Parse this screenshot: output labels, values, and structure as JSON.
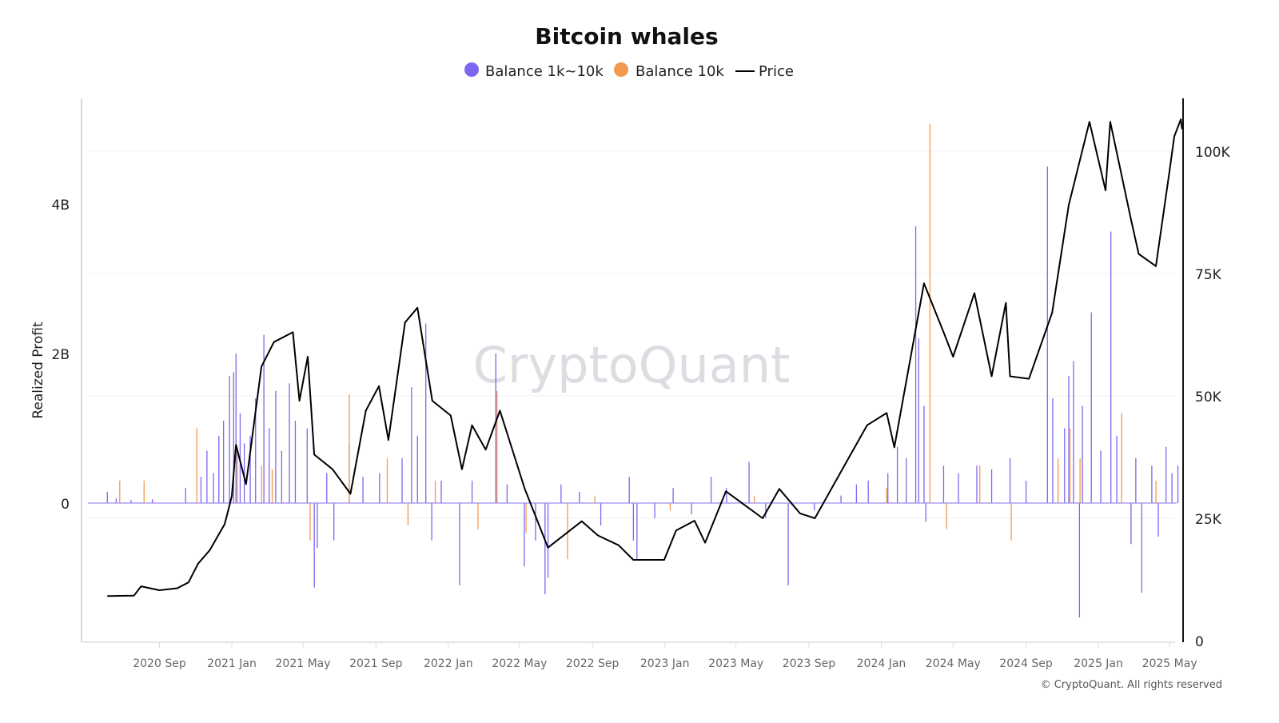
{
  "chart_data": {
    "type": "bar+line",
    "title": "Bitcoin whales",
    "ylabel": "Realized Profit",
    "y2label": "",
    "legend_position": "top-center",
    "grid": true,
    "watermark": "CryptoQuant",
    "copyright": "© CryptoQuant. All rights reserved",
    "colors": {
      "balance_1k_10k": "#7b68ee",
      "balance_10k": "#f29a4e",
      "price": "#000000"
    },
    "legend": [
      {
        "name": "Balance 1k~10k",
        "marker": "circle",
        "color": "#7b68ee"
      },
      {
        "name": "Balance 10k",
        "marker": "circle",
        "color": "#f29a4e"
      },
      {
        "name": "Price",
        "marker": "line",
        "color": "#000000"
      }
    ],
    "x_ticks": [
      "2020 Sep",
      "2021 Jan",
      "2021 May",
      "2021 Sep",
      "2022 Jan",
      "2022 May",
      "2022 Sep",
      "2023 Jan",
      "2023 May",
      "2023 Sep",
      "2024 Jan",
      "2024 May",
      "2024 Sep",
      "2025 Jan",
      "2025 May"
    ],
    "x_tick_dates": [
      "2020-09-01",
      "2021-01-01",
      "2021-05-01",
      "2021-09-01",
      "2022-01-01",
      "2022-05-01",
      "2022-09-01",
      "2023-01-01",
      "2023-05-01",
      "2023-09-01",
      "2024-01-01",
      "2024-05-01",
      "2024-09-01",
      "2025-01-01",
      "2025-05-01"
    ],
    "xlim": [
      "2020-06-01",
      "2025-05-25"
    ],
    "y_left": {
      "ticks": [
        0,
        2,
        4
      ],
      "tick_labels": [
        "0",
        "2B",
        "4B"
      ],
      "unit": "B",
      "range": [
        -1.86,
        5.4
      ]
    },
    "y_right": {
      "ticks": [
        0,
        25000,
        50000,
        75000,
        100000
      ],
      "tick_labels": [
        "0",
        "25K",
        "50K",
        "75K",
        "100K"
      ],
      "range": [
        0,
        111000
      ]
    },
    "series": [
      {
        "name": "Balance 1k~10k",
        "type": "bar",
        "axis": "left",
        "color": "#7b68ee",
        "data": [
          [
            "2020-06-05",
            0.15
          ],
          [
            "2020-06-20",
            0.06
          ],
          [
            "2020-07-15",
            0.04
          ],
          [
            "2020-08-20",
            0.05
          ],
          [
            "2020-10-15",
            0.2
          ],
          [
            "2020-11-10",
            0.35
          ],
          [
            "2020-11-20",
            0.7
          ],
          [
            "2020-12-01",
            0.4
          ],
          [
            "2020-12-10",
            0.9
          ],
          [
            "2020-12-18",
            1.1
          ],
          [
            "2020-12-28",
            1.7
          ],
          [
            "2021-01-04",
            1.75
          ],
          [
            "2021-01-08",
            2.0
          ],
          [
            "2021-01-15",
            1.2
          ],
          [
            "2021-01-22",
            0.8
          ],
          [
            "2021-02-01",
            0.9
          ],
          [
            "2021-02-10",
            1.4
          ],
          [
            "2021-02-24",
            2.25
          ],
          [
            "2021-03-05",
            1.0
          ],
          [
            "2021-03-16",
            1.5
          ],
          [
            "2021-03-26",
            0.7
          ],
          [
            "2021-04-08",
            1.6
          ],
          [
            "2021-04-18",
            1.1
          ],
          [
            "2021-05-08",
            1.0
          ],
          [
            "2021-05-20",
            -1.13
          ],
          [
            "2021-05-25",
            -0.6
          ],
          [
            "2021-06-10",
            0.4
          ],
          [
            "2021-06-22",
            -0.5
          ],
          [
            "2021-07-18",
            0.8
          ],
          [
            "2021-08-10",
            0.35
          ],
          [
            "2021-09-07",
            0.4
          ],
          [
            "2021-10-15",
            0.6
          ],
          [
            "2021-10-31",
            1.55
          ],
          [
            "2021-11-10",
            0.9
          ],
          [
            "2021-11-24",
            2.4
          ],
          [
            "2021-12-04",
            -0.5
          ],
          [
            "2021-12-20",
            0.3
          ],
          [
            "2022-01-20",
            -1.1
          ],
          [
            "2022-02-10",
            0.3
          ],
          [
            "2022-03-22",
            2.0
          ],
          [
            "2022-04-10",
            0.25
          ],
          [
            "2022-05-09",
            -0.85
          ],
          [
            "2022-05-28",
            -0.5
          ],
          [
            "2022-06-13",
            -1.22
          ],
          [
            "2022-06-18",
            -1.0
          ],
          [
            "2022-07-10",
            0.25
          ],
          [
            "2022-08-10",
            0.15
          ],
          [
            "2022-09-15",
            -0.3
          ],
          [
            "2022-11-02",
            0.35
          ],
          [
            "2022-11-09",
            -0.5
          ],
          [
            "2022-11-15",
            -0.76
          ],
          [
            "2022-12-15",
            -0.2
          ],
          [
            "2023-01-15",
            0.2
          ],
          [
            "2023-02-15",
            -0.15
          ],
          [
            "2023-03-20",
            0.35
          ],
          [
            "2023-04-15",
            0.2
          ],
          [
            "2023-05-23",
            0.55
          ],
          [
            "2023-06-20",
            -0.2
          ],
          [
            "2023-07-28",
            -1.1
          ],
          [
            "2023-09-10",
            -0.1
          ],
          [
            "2023-10-25",
            0.1
          ],
          [
            "2023-11-20",
            0.25
          ],
          [
            "2023-12-10",
            0.3
          ],
          [
            "2024-01-12",
            0.4
          ],
          [
            "2024-01-28",
            0.75
          ],
          [
            "2024-02-12",
            0.6
          ],
          [
            "2024-02-28",
            3.7
          ],
          [
            "2024-03-04",
            2.2
          ],
          [
            "2024-03-13",
            1.3
          ],
          [
            "2024-03-16",
            -0.25
          ],
          [
            "2024-04-15",
            0.5
          ],
          [
            "2024-05-10",
            0.4
          ],
          [
            "2024-06-10",
            0.5
          ],
          [
            "2024-07-05",
            0.45
          ],
          [
            "2024-08-05",
            0.6
          ],
          [
            "2024-09-01",
            0.3
          ],
          [
            "2024-10-07",
            4.5
          ],
          [
            "2024-10-16",
            1.4
          ],
          [
            "2024-11-05",
            1.0
          ],
          [
            "2024-11-12",
            1.7
          ],
          [
            "2024-11-20",
            1.9
          ],
          [
            "2024-11-30",
            -1.53
          ],
          [
            "2024-12-05",
            1.3
          ],
          [
            "2024-12-20",
            2.55
          ],
          [
            "2025-01-05",
            0.7
          ],
          [
            "2025-01-22",
            3.63
          ],
          [
            "2025-02-01",
            0.9
          ],
          [
            "2025-02-25",
            -0.55
          ],
          [
            "2025-03-05",
            0.6
          ],
          [
            "2025-03-15",
            -1.2
          ],
          [
            "2025-04-01",
            0.5
          ],
          [
            "2025-04-12",
            -0.45
          ],
          [
            "2025-04-25",
            0.75
          ],
          [
            "2025-05-05",
            0.4
          ],
          [
            "2025-05-15",
            0.5
          ]
        ]
      },
      {
        "name": "Balance 10k",
        "type": "bar",
        "axis": "left",
        "color": "#f29a4e",
        "data": [
          [
            "2020-06-26",
            0.3
          ],
          [
            "2020-08-06",
            0.3
          ],
          [
            "2020-11-03",
            1.0
          ],
          [
            "2021-01-10",
            0.7
          ],
          [
            "2021-02-20",
            0.5
          ],
          [
            "2021-03-10",
            0.45
          ],
          [
            "2021-05-13",
            -0.5
          ],
          [
            "2021-07-18",
            1.45
          ],
          [
            "2021-09-20",
            0.6
          ],
          [
            "2021-10-25",
            -0.3
          ],
          [
            "2021-12-10",
            0.3
          ],
          [
            "2022-02-20",
            -0.35
          ],
          [
            "2022-03-24",
            1.5
          ],
          [
            "2022-05-12",
            -0.4
          ],
          [
            "2022-07-21",
            -0.75
          ],
          [
            "2022-09-05",
            0.1
          ],
          [
            "2023-01-10",
            -0.1
          ],
          [
            "2023-06-01",
            0.1
          ],
          [
            "2024-01-10",
            0.2
          ],
          [
            "2024-03-23",
            5.07
          ],
          [
            "2024-04-20",
            -0.35
          ],
          [
            "2024-06-15",
            0.5
          ],
          [
            "2024-08-07",
            -0.5
          ],
          [
            "2024-10-25",
            0.6
          ],
          [
            "2024-11-14",
            1.0
          ],
          [
            "2024-12-01",
            0.6
          ],
          [
            "2025-02-09",
            1.2
          ],
          [
            "2025-04-08",
            0.3
          ]
        ]
      },
      {
        "name": "Price",
        "type": "line",
        "axis": "right",
        "color": "#000000",
        "data": [
          [
            "2020-06-05",
            9100
          ],
          [
            "2020-07-20",
            9200
          ],
          [
            "2020-08-01",
            11100
          ],
          [
            "2020-09-01",
            10300
          ],
          [
            "2020-10-01",
            10700
          ],
          [
            "2020-10-20",
            11900
          ],
          [
            "2020-11-05",
            15700
          ],
          [
            "2020-11-25",
            18500
          ],
          [
            "2020-12-20",
            23800
          ],
          [
            "2021-01-01",
            29500
          ],
          [
            "2021-01-08",
            40000
          ],
          [
            "2021-01-25",
            32000
          ],
          [
            "2021-02-20",
            56000
          ],
          [
            "2021-03-13",
            61000
          ],
          [
            "2021-04-14",
            63000
          ],
          [
            "2021-04-25",
            49000
          ],
          [
            "2021-05-09",
            58000
          ],
          [
            "2021-05-20",
            38000
          ],
          [
            "2021-06-20",
            35000
          ],
          [
            "2021-07-20",
            30000
          ],
          [
            "2021-08-15",
            47000
          ],
          [
            "2021-09-06",
            52000
          ],
          [
            "2021-09-22",
            41000
          ],
          [
            "2021-10-20",
            65000
          ],
          [
            "2021-11-10",
            68000
          ],
          [
            "2021-12-05",
            49000
          ],
          [
            "2022-01-05",
            46000
          ],
          [
            "2022-01-24",
            35000
          ],
          [
            "2022-02-10",
            44000
          ],
          [
            "2022-03-05",
            39000
          ],
          [
            "2022-03-29",
            47000
          ],
          [
            "2022-05-10",
            31000
          ],
          [
            "2022-06-18",
            19000
          ],
          [
            "2022-08-14",
            24400
          ],
          [
            "2022-09-10",
            21500
          ],
          [
            "2022-10-15",
            19500
          ],
          [
            "2022-11-09",
            16500
          ],
          [
            "2022-12-31",
            16500
          ],
          [
            "2023-01-20",
            22500
          ],
          [
            "2023-02-20",
            24500
          ],
          [
            "2023-03-10",
            20000
          ],
          [
            "2023-04-14",
            30500
          ],
          [
            "2023-06-15",
            25000
          ],
          [
            "2023-07-13",
            31000
          ],
          [
            "2023-08-17",
            26000
          ],
          [
            "2023-09-11",
            25000
          ],
          [
            "2023-10-25",
            34500
          ],
          [
            "2023-12-08",
            44000
          ],
          [
            "2024-01-10",
            46500
          ],
          [
            "2024-01-23",
            39500
          ],
          [
            "2024-03-13",
            73000
          ],
          [
            "2024-04-15",
            63000
          ],
          [
            "2024-05-01",
            58000
          ],
          [
            "2024-06-06",
            71000
          ],
          [
            "2024-07-05",
            54000
          ],
          [
            "2024-07-29",
            69000
          ],
          [
            "2024-08-05",
            54000
          ],
          [
            "2024-09-06",
            53500
          ],
          [
            "2024-10-15",
            67000
          ],
          [
            "2024-11-12",
            89000
          ],
          [
            "2024-12-17",
            106000
          ],
          [
            "2025-01-13",
            92000
          ],
          [
            "2025-01-21",
            106000
          ],
          [
            "2025-02-25",
            86000
          ],
          [
            "2025-03-10",
            79000
          ],
          [
            "2025-04-08",
            76500
          ],
          [
            "2025-05-01",
            96000
          ],
          [
            "2025-05-09",
            103000
          ],
          [
            "2025-05-12",
            104000
          ],
          [
            "2025-05-20",
            106500
          ],
          [
            "2025-05-22",
            104500
          ]
        ]
      }
    ]
  }
}
